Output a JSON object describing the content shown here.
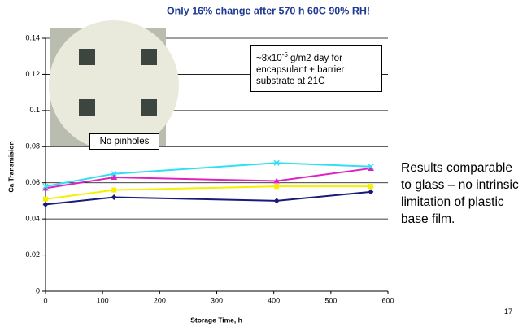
{
  "chart_data": {
    "type": "line",
    "title": "Only 16% change after 570 h 60C 90% RH!",
    "x_label": "Storage Time, h",
    "y_label": "Ca Transmision",
    "x": [
      0,
      120,
      405,
      570
    ],
    "series": [
      {
        "color": "#1a1a7a",
        "marker": "diamond",
        "values": [
          0.048,
          0.052,
          0.05,
          0.055
        ]
      },
      {
        "color": "#f5f000",
        "marker": "square",
        "values": [
          0.051,
          0.056,
          0.058,
          0.058
        ]
      },
      {
        "color": "#e020c0",
        "marker": "triangle",
        "values": [
          0.057,
          0.063,
          0.061,
          0.068
        ]
      },
      {
        "color": "#30e0f0",
        "marker": "x",
        "values": [
          0.058,
          0.065,
          0.071,
          0.069
        ]
      }
    ],
    "xlim": [
      0,
      600
    ],
    "xticks": [
      0,
      100,
      200,
      300,
      400,
      500,
      600
    ],
    "ylim": [
      0,
      0.14
    ],
    "yticks": [
      0,
      0.02,
      0.04,
      0.06,
      0.08,
      0.1,
      0.12,
      0.14
    ],
    "grid": true,
    "annotation": {
      "base": "~8x10",
      "sup": "-5",
      "rest": " g/m2 day for encapsulant + barrier substrate at 21C"
    },
    "inset_label": "No pinholes"
  },
  "side_text": "Results comparable to glass – no intrinsic limitation of plastic base film.",
  "page_number": "17"
}
